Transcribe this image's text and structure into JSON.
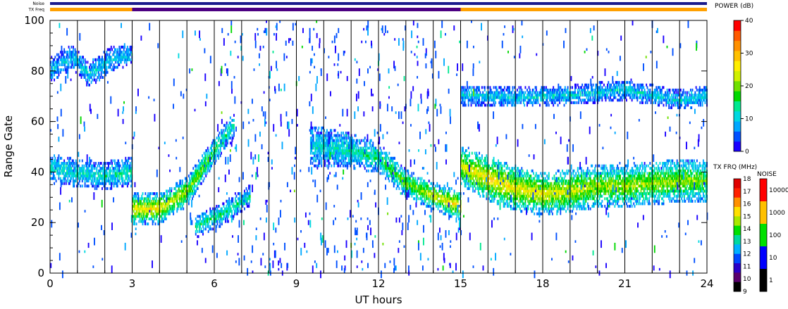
{
  "top_bars": {
    "noise_label": "Noise",
    "freq_label": "TX Freq"
  },
  "chart_data": {
    "type": "heatmap",
    "title": "",
    "xlabel": "UT hours",
    "ylabel": "Range Gate",
    "xlim": [
      0,
      24
    ],
    "ylim": [
      0,
      100
    ],
    "x_ticks": [
      0,
      3,
      6,
      9,
      12,
      15,
      18,
      21,
      24
    ],
    "x_tick_labels": [
      "0",
      "3",
      "6",
      "9",
      "12",
      "15",
      "18",
      "21",
      "24"
    ],
    "y_ticks": [
      0,
      20,
      40,
      60,
      80,
      100
    ],
    "y_tick_labels": [
      "0",
      "20",
      "40",
      "60",
      "80",
      "100"
    ],
    "scan_boundaries_hours": [
      1,
      2,
      3,
      4,
      5,
      6,
      7,
      8,
      9,
      10,
      11,
      12,
      13,
      14,
      15,
      16,
      17,
      18,
      19,
      20,
      21,
      22,
      23
    ],
    "echo_bands": [
      {
        "t": [
          0,
          1,
          2,
          3
        ],
        "center_gate": [
          41,
          39,
          38,
          40
        ],
        "width_gates": [
          10,
          9,
          9,
          10
        ],
        "power_db": [
          12,
          12,
          12,
          14
        ]
      },
      {
        "t": [
          0,
          0.8,
          1.4,
          2.2,
          3
        ],
        "center_gate": [
          80,
          85,
          78,
          84,
          86
        ],
        "width_gates": [
          8,
          8,
          8,
          8,
          6
        ],
        "power_db": [
          9,
          9,
          9,
          9,
          9
        ]
      },
      {
        "t": [
          3,
          4,
          5,
          6,
          6.7
        ],
        "center_gate": [
          25,
          25,
          32,
          48,
          58
        ],
        "width_gates": [
          11,
          10,
          10,
          9,
          8
        ],
        "power_db": [
          26,
          26,
          22,
          16,
          12
        ]
      },
      {
        "t": [
          5.3,
          6.3,
          7.3
        ],
        "center_gate": [
          18,
          23,
          30
        ],
        "width_gates": [
          7,
          7,
          7
        ],
        "power_db": [
          14,
          14,
          12
        ]
      },
      {
        "t": [
          9.5,
          11,
          12,
          13,
          14,
          15
        ],
        "center_gate": [
          50,
          48,
          45,
          35,
          30,
          26
        ],
        "width_gates": [
          14,
          12,
          10,
          9,
          9,
          10
        ],
        "power_db": [
          11,
          12,
          15,
          20,
          24,
          28
        ]
      },
      {
        "t": [
          15,
          16,
          17,
          18,
          19,
          20,
          21,
          22,
          23,
          24
        ],
        "center_gate": [
          42,
          37,
          33,
          31,
          32,
          34,
          34,
          35,
          36,
          36
        ],
        "width_gates": [
          13,
          16,
          16,
          15,
          15,
          15,
          15,
          15,
          15,
          14
        ],
        "power_db": [
          24,
          28,
          26,
          26,
          24,
          22,
          22,
          22,
          22,
          20
        ]
      },
      {
        "t": [
          15,
          17,
          19,
          21,
          23,
          24
        ],
        "center_gate": [
          70,
          69,
          70,
          72,
          68,
          70
        ],
        "width_gates": [
          6,
          6,
          6,
          6,
          6,
          6
        ],
        "power_db": [
          10,
          10,
          10,
          10,
          10,
          10
        ]
      }
    ],
    "tx_freq_segments": [
      {
        "t_start": 0,
        "t_end": 3,
        "freq_mhz": 15
      },
      {
        "t_start": 3,
        "t_end": 15,
        "freq_mhz": 11
      },
      {
        "t_start": 15,
        "t_end": 24,
        "freq_mhz": 15
      }
    ],
    "colorbars": [
      {
        "id": "power",
        "title": "POWER (dB)",
        "min": 0,
        "max": 40,
        "tick_labels": [
          "40",
          "30",
          "20",
          "10",
          "0"
        ]
      },
      {
        "id": "freq",
        "title": "TX FRQ (MHz)",
        "tick_labels": [
          "18",
          "17",
          "16",
          "15",
          "14",
          "13",
          "12",
          "11",
          "10",
          "9"
        ]
      },
      {
        "id": "noise",
        "title": "NOISE",
        "tick_labels": [
          "10000",
          "1000",
          "100",
          "10",
          "1"
        ]
      }
    ]
  },
  "colors": {
    "scale": [
      "#1a00ff",
      "#0050ff",
      "#00a8ff",
      "#00d8e0",
      "#00e890",
      "#00d800",
      "#70e000",
      "#d0f000",
      "#ffee00",
      "#ffc000",
      "#ff9000",
      "#ff5a00",
      "#ff0000"
    ],
    "freq_scale": [
      "#000000",
      "#5a006e",
      "#2a00c8",
      "#0048ff",
      "#00b0ff",
      "#00d8a0",
      "#00e000",
      "#a8e800",
      "#ffe000",
      "#ff9000",
      "#ff2000",
      "#e00000"
    ],
    "noise_scale": [
      "#000000",
      "#0000ff",
      "#00e000",
      "#ffc000",
      "#ff0000"
    ],
    "tx_freq_orange": "#ffa000",
    "tx_freq_purple": "#4b0082",
    "noise_bar": "#1a1a8c"
  }
}
